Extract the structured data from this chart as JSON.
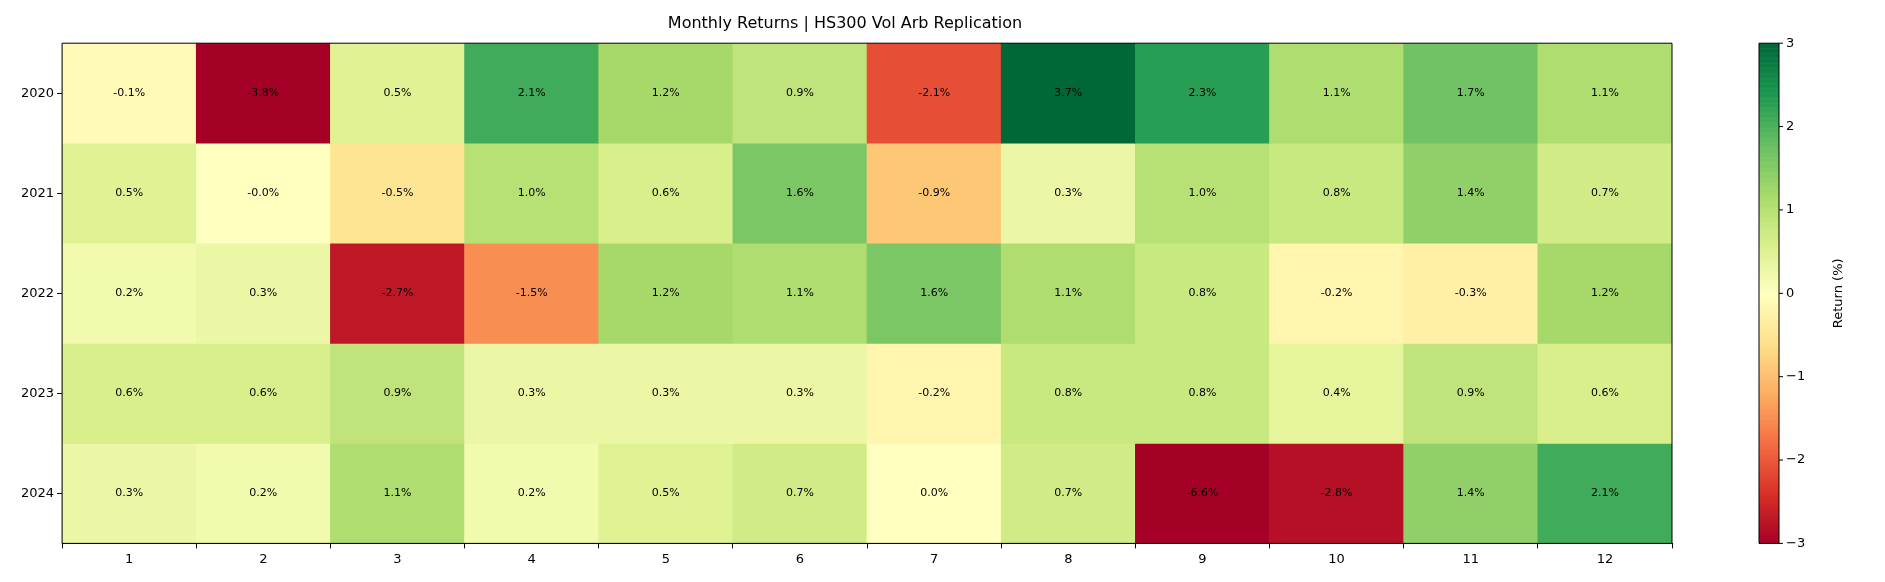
{
  "chart_data": {
    "type": "heatmap",
    "title": "Monthly Returns | HS300 Vol Arb Replication",
    "clabel": "Return (%)",
    "categories": [
      "1",
      "2",
      "3",
      "4",
      "5",
      "6",
      "7",
      "8",
      "9",
      "10",
      "11",
      "12"
    ],
    "y_categories": [
      "2020",
      "2021",
      "2022",
      "2023",
      "2024"
    ],
    "cells": [
      [
        -0.1,
        -3.8,
        0.5,
        2.1,
        1.2,
        0.9,
        -2.1,
        3.7,
        2.3,
        1.1,
        1.7,
        1.1
      ],
      [
        0.5,
        0,
        -0.5,
        1.0,
        0.6,
        1.6,
        -0.9,
        0.3,
        1.0,
        0.8,
        1.4,
        0.7
      ],
      [
        0.2,
        0.3,
        -2.7,
        -1.5,
        1.2,
        1.1,
        1.6,
        1.1,
        0.8,
        -0.2,
        -0.3,
        1.2
      ],
      [
        0.6,
        0.6,
        0.9,
        0.3,
        0.3,
        0.3,
        -0.2,
        0.8,
        0.8,
        0.4,
        0.9,
        0.6
      ],
      [
        0.3,
        0.2,
        1.1,
        0.2,
        0.5,
        0.7,
        0.0,
        0.7,
        -6.6,
        -2.8,
        1.4,
        2.1
      ]
    ],
    "cell_labels": [
      [
        "-0.1%",
        "-3.8%",
        "0.5%",
        "2.1%",
        "1.2%",
        "0.9%",
        "-2.1%",
        "3.7%",
        "2.3%",
        "1.1%",
        "1.7%",
        "1.1%"
      ],
      [
        "0.5%",
        "-0.0%",
        "-0.5%",
        "1.0%",
        "0.6%",
        "1.6%",
        "-0.9%",
        "0.3%",
        "1.0%",
        "0.8%",
        "1.4%",
        "0.7%"
      ],
      [
        "0.2%",
        "0.3%",
        "-2.7%",
        "-1.5%",
        "1.2%",
        "1.1%",
        "1.6%",
        "1.1%",
        "0.8%",
        "-0.2%",
        "-0.3%",
        "1.2%"
      ],
      [
        "0.6%",
        "0.6%",
        "0.9%",
        "0.3%",
        "0.3%",
        "0.3%",
        "-0.2%",
        "0.8%",
        "0.8%",
        "0.4%",
        "0.9%",
        "0.6%"
      ],
      [
        "0.3%",
        "0.2%",
        "1.1%",
        "0.2%",
        "0.5%",
        "0.7%",
        "0.0%",
        "0.7%",
        "-6.6%",
        "-2.8%",
        "1.4%",
        "2.1%"
      ]
    ],
    "clim": [
      -3,
      3
    ],
    "cticks": [
      {
        "value": -3,
        "label": "−3"
      },
      {
        "value": -2,
        "label": "−2"
      },
      {
        "value": -1,
        "label": "−1"
      },
      0,
      1,
      2,
      3
    ]
  }
}
